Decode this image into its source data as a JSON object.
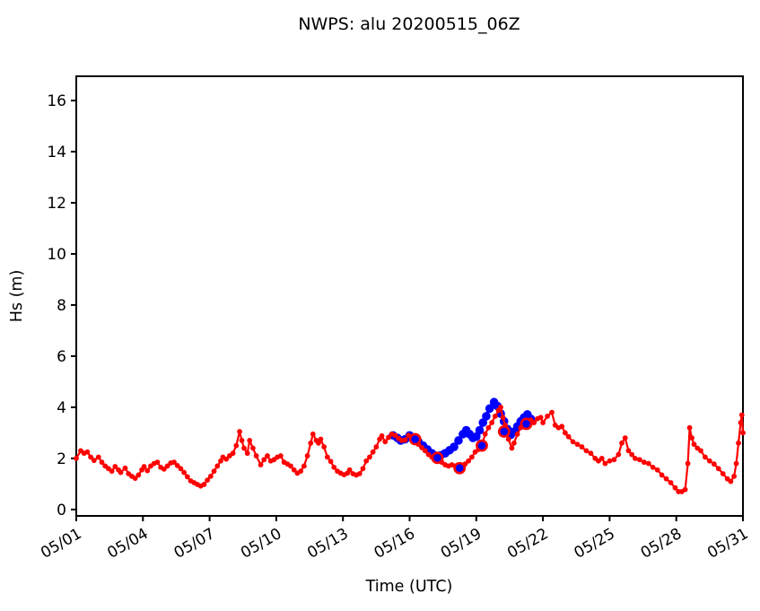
{
  "chart_data": {
    "type": "line",
    "title": "NWPS: alu 20200515_06Z",
    "xlabel": "Time (UTC)",
    "ylabel": "Hs (m)",
    "grid": false,
    "legend": "none",
    "ylim": [
      -0.25,
      16.95
    ],
    "yticks": [
      0,
      2,
      4,
      6,
      8,
      10,
      12,
      14,
      16
    ],
    "xlim_days_of_may": [
      1,
      31
    ],
    "xticks_days_of_may": [
      1,
      4,
      7,
      10,
      13,
      16,
      19,
      22,
      25,
      28,
      31
    ],
    "xtick_labels": [
      "05/01",
      "05/04",
      "05/07",
      "05/10",
      "05/13",
      "05/16",
      "05/19",
      "05/22",
      "05/25",
      "05/28",
      "05/31"
    ],
    "xtick_rotation_deg": 30,
    "colors": {
      "observation": "#ff0000",
      "model": "#0000ff",
      "ring_marker_edge": "#ff0000",
      "ring_marker_face": "#0000ff",
      "axis": "#000000",
      "background": "#ffffff"
    },
    "series": [
      {
        "name": "observations",
        "style": "small-dot-line",
        "color_key": "observation",
        "x_unit": "day-of-may (decimal)",
        "y_unit": "m",
        "points": [
          [
            1.0,
            2.0
          ],
          [
            1.2,
            2.3
          ],
          [
            1.35,
            2.2
          ],
          [
            1.5,
            2.25
          ],
          [
            1.65,
            2.05
          ],
          [
            1.8,
            1.92
          ],
          [
            2.0,
            2.05
          ],
          [
            2.15,
            1.85
          ],
          [
            2.3,
            1.7
          ],
          [
            2.45,
            1.6
          ],
          [
            2.6,
            1.5
          ],
          [
            2.75,
            1.68
          ],
          [
            2.9,
            1.55
          ],
          [
            3.0,
            1.45
          ],
          [
            3.2,
            1.62
          ],
          [
            3.35,
            1.4
          ],
          [
            3.5,
            1.3
          ],
          [
            3.65,
            1.22
          ],
          [
            3.8,
            1.35
          ],
          [
            3.95,
            1.55
          ],
          [
            4.05,
            1.68
          ],
          [
            4.2,
            1.52
          ],
          [
            4.35,
            1.7
          ],
          [
            4.5,
            1.8
          ],
          [
            4.65,
            1.85
          ],
          [
            4.8,
            1.65
          ],
          [
            4.95,
            1.58
          ],
          [
            5.1,
            1.7
          ],
          [
            5.25,
            1.82
          ],
          [
            5.4,
            1.85
          ],
          [
            5.55,
            1.72
          ],
          [
            5.7,
            1.6
          ],
          [
            5.85,
            1.45
          ],
          [
            6.0,
            1.28
          ],
          [
            6.15,
            1.12
          ],
          [
            6.3,
            1.05
          ],
          [
            6.45,
            0.98
          ],
          [
            6.6,
            0.92
          ],
          [
            6.75,
            0.98
          ],
          [
            6.9,
            1.15
          ],
          [
            7.05,
            1.3
          ],
          [
            7.2,
            1.5
          ],
          [
            7.35,
            1.7
          ],
          [
            7.5,
            1.9
          ],
          [
            7.6,
            2.05
          ],
          [
            7.75,
            1.97
          ],
          [
            7.9,
            2.1
          ],
          [
            8.05,
            2.2
          ],
          [
            8.2,
            2.5
          ],
          [
            8.35,
            3.05
          ],
          [
            8.45,
            2.7
          ],
          [
            8.55,
            2.4
          ],
          [
            8.7,
            2.2
          ],
          [
            8.8,
            2.7
          ],
          [
            8.95,
            2.4
          ],
          [
            9.1,
            2.1
          ],
          [
            9.3,
            1.75
          ],
          [
            9.45,
            1.95
          ],
          [
            9.6,
            2.1
          ],
          [
            9.75,
            1.9
          ],
          [
            9.9,
            1.95
          ],
          [
            10.05,
            2.05
          ],
          [
            10.2,
            2.1
          ],
          [
            10.35,
            1.85
          ],
          [
            10.5,
            1.78
          ],
          [
            10.65,
            1.7
          ],
          [
            10.8,
            1.55
          ],
          [
            10.95,
            1.42
          ],
          [
            11.1,
            1.5
          ],
          [
            11.25,
            1.7
          ],
          [
            11.4,
            2.1
          ],
          [
            11.55,
            2.6
          ],
          [
            11.65,
            2.95
          ],
          [
            11.8,
            2.7
          ],
          [
            11.9,
            2.6
          ],
          [
            12.0,
            2.75
          ],
          [
            12.15,
            2.45
          ],
          [
            12.3,
            2.05
          ],
          [
            12.45,
            1.88
          ],
          [
            12.6,
            1.65
          ],
          [
            12.75,
            1.5
          ],
          [
            12.9,
            1.42
          ],
          [
            13.05,
            1.36
          ],
          [
            13.2,
            1.42
          ],
          [
            13.3,
            1.55
          ],
          [
            13.45,
            1.4
          ],
          [
            13.6,
            1.35
          ],
          [
            13.75,
            1.4
          ],
          [
            13.9,
            1.6
          ],
          [
            14.05,
            1.9
          ],
          [
            14.2,
            2.05
          ],
          [
            14.35,
            2.25
          ],
          [
            14.5,
            2.45
          ],
          [
            14.65,
            2.75
          ],
          [
            14.75,
            2.88
          ],
          [
            14.9,
            2.65
          ],
          [
            15.05,
            2.82
          ],
          [
            15.2,
            2.95
          ],
          [
            15.35,
            2.9
          ],
          [
            15.5,
            2.78
          ],
          [
            15.65,
            2.7
          ],
          [
            15.8,
            2.72
          ],
          [
            15.95,
            2.9
          ],
          [
            16.1,
            2.8
          ],
          [
            16.25,
            2.75
          ],
          [
            16.4,
            2.55
          ],
          [
            16.55,
            2.42
          ],
          [
            16.7,
            2.3
          ],
          [
            16.85,
            2.15
          ],
          [
            17.0,
            2.05
          ],
          [
            17.15,
            2.0
          ],
          [
            17.3,
            1.95
          ],
          [
            17.45,
            1.85
          ],
          [
            17.6,
            1.75
          ],
          [
            17.75,
            1.7
          ],
          [
            17.9,
            1.75
          ],
          [
            18.05,
            1.7
          ],
          [
            18.2,
            1.63
          ],
          [
            18.35,
            1.68
          ],
          [
            18.5,
            1.78
          ],
          [
            18.65,
            1.9
          ],
          [
            18.8,
            2.05
          ],
          [
            18.95,
            2.25
          ],
          [
            19.1,
            2.35
          ],
          [
            19.25,
            2.5
          ],
          [
            19.4,
            2.95
          ],
          [
            19.55,
            3.2
          ],
          [
            19.7,
            3.4
          ],
          [
            19.85,
            3.65
          ],
          [
            20.0,
            3.88
          ],
          [
            20.1,
            4.0
          ],
          [
            20.2,
            3.6
          ],
          [
            20.3,
            3.3
          ],
          [
            20.45,
            2.75
          ],
          [
            20.6,
            2.4
          ],
          [
            20.7,
            2.6
          ],
          [
            20.85,
            2.95
          ],
          [
            21.0,
            3.2
          ],
          [
            21.15,
            3.35
          ],
          [
            21.3,
            3.45
          ],
          [
            21.45,
            3.5
          ],
          [
            21.6,
            3.4
          ],
          [
            21.75,
            3.55
          ],
          [
            21.9,
            3.6
          ],
          [
            22.0,
            3.4
          ],
          [
            22.2,
            3.65
          ],
          [
            22.4,
            3.8
          ],
          [
            22.55,
            3.3
          ],
          [
            22.7,
            3.2
          ],
          [
            22.85,
            3.25
          ],
          [
            23.0,
            3.0
          ],
          [
            23.15,
            2.85
          ],
          [
            23.35,
            2.65
          ],
          [
            23.55,
            2.55
          ],
          [
            23.75,
            2.45
          ],
          [
            23.95,
            2.3
          ],
          [
            24.15,
            2.2
          ],
          [
            24.35,
            2.0
          ],
          [
            24.5,
            1.9
          ],
          [
            24.65,
            2.0
          ],
          [
            24.8,
            1.8
          ],
          [
            25.0,
            1.9
          ],
          [
            25.2,
            1.95
          ],
          [
            25.4,
            2.15
          ],
          [
            25.55,
            2.6
          ],
          [
            25.7,
            2.8
          ],
          [
            25.85,
            2.3
          ],
          [
            26.0,
            2.15
          ],
          [
            26.15,
            2.0
          ],
          [
            26.35,
            1.95
          ],
          [
            26.55,
            1.85
          ],
          [
            26.75,
            1.8
          ],
          [
            26.95,
            1.65
          ],
          [
            27.15,
            1.55
          ],
          [
            27.35,
            1.35
          ],
          [
            27.55,
            1.2
          ],
          [
            27.75,
            1.05
          ],
          [
            27.95,
            0.85
          ],
          [
            28.1,
            0.7
          ],
          [
            28.25,
            0.7
          ],
          [
            28.4,
            0.78
          ],
          [
            28.52,
            1.8
          ],
          [
            28.6,
            3.2
          ],
          [
            28.7,
            2.8
          ],
          [
            28.8,
            2.55
          ],
          [
            28.95,
            2.4
          ],
          [
            29.1,
            2.3
          ],
          [
            29.3,
            2.05
          ],
          [
            29.5,
            1.9
          ],
          [
            29.7,
            1.78
          ],
          [
            29.9,
            1.6
          ],
          [
            30.1,
            1.4
          ],
          [
            30.3,
            1.2
          ],
          [
            30.45,
            1.1
          ],
          [
            30.6,
            1.3
          ],
          [
            30.7,
            1.8
          ],
          [
            30.8,
            2.6
          ],
          [
            30.9,
            3.4
          ],
          [
            30.95,
            3.7
          ],
          [
            31.0,
            3.0
          ]
        ]
      },
      {
        "name": "model-forecast",
        "style": "thick-line-with-dots",
        "color_key": "model",
        "x_unit": "day-of-may (decimal)",
        "y_unit": "m",
        "points": [
          [
            15.25,
            2.9
          ],
          [
            15.45,
            2.8
          ],
          [
            15.6,
            2.7
          ],
          [
            15.8,
            2.75
          ],
          [
            16.0,
            2.9
          ],
          [
            16.2,
            2.82
          ],
          [
            16.4,
            2.65
          ],
          [
            16.6,
            2.5
          ],
          [
            16.8,
            2.35
          ],
          [
            17.0,
            2.2
          ],
          [
            17.2,
            2.1
          ],
          [
            17.4,
            2.12
          ],
          [
            17.6,
            2.2
          ],
          [
            17.8,
            2.32
          ],
          [
            18.0,
            2.45
          ],
          [
            18.2,
            2.7
          ],
          [
            18.4,
            2.95
          ],
          [
            18.55,
            3.1
          ],
          [
            18.7,
            2.95
          ],
          [
            18.85,
            2.8
          ],
          [
            19.0,
            2.85
          ],
          [
            19.15,
            3.1
          ],
          [
            19.3,
            3.4
          ],
          [
            19.45,
            3.65
          ],
          [
            19.6,
            3.95
          ],
          [
            19.8,
            4.2
          ],
          [
            19.95,
            4.05
          ],
          [
            20.1,
            3.75
          ],
          [
            20.25,
            3.45
          ],
          [
            20.4,
            3.15
          ],
          [
            20.55,
            2.92
          ],
          [
            20.7,
            3.05
          ],
          [
            20.85,
            3.25
          ],
          [
            21.0,
            3.45
          ],
          [
            21.15,
            3.6
          ],
          [
            21.3,
            3.72
          ],
          [
            21.45,
            3.55
          ]
        ]
      },
      {
        "name": "daily-06z-markers",
        "style": "ring-markers",
        "color_key": "ring_marker_edge",
        "face_color_key": "ring_marker_face",
        "x_unit": "day-of-may (decimal)",
        "y_unit": "m",
        "points": [
          [
            16.25,
            2.75
          ],
          [
            17.25,
            2.02
          ],
          [
            18.25,
            1.62
          ],
          [
            19.25,
            2.5
          ],
          [
            20.25,
            3.05
          ],
          [
            21.25,
            3.35
          ]
        ]
      }
    ]
  }
}
